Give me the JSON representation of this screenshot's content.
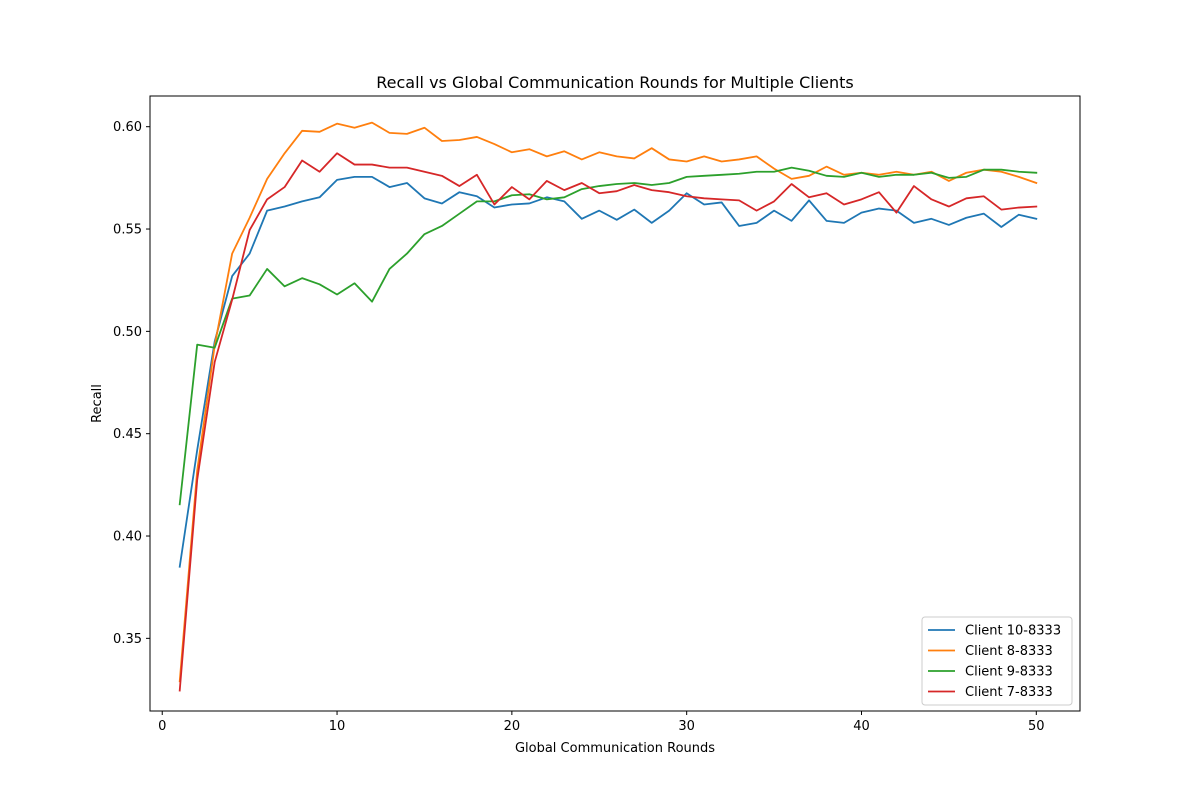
{
  "chart_data": {
    "type": "line",
    "title": "Recall vs Global Communication Rounds for Multiple Clients",
    "xlabel": "Global Communication Rounds",
    "ylabel": "Recall",
    "xlim": [
      -0.7,
      52.5
    ],
    "ylim": [
      0.3145,
      0.615
    ],
    "xticks": [
      0,
      10,
      20,
      30,
      40,
      50
    ],
    "yticks": [
      0.35,
      0.4,
      0.45,
      0.5,
      0.55,
      0.6
    ],
    "xtick_labels": [
      "0",
      "10",
      "20",
      "30",
      "40",
      "50"
    ],
    "ytick_labels": [
      "0.35",
      "0.40",
      "0.45",
      "0.50",
      "0.55",
      "0.60"
    ],
    "grid": false,
    "legend_position": "lower-right",
    "x": [
      1,
      2,
      3,
      4,
      5,
      6,
      7,
      8,
      9,
      10,
      11,
      12,
      13,
      14,
      15,
      16,
      17,
      18,
      19,
      20,
      21,
      22,
      23,
      24,
      25,
      26,
      27,
      28,
      29,
      30,
      31,
      32,
      33,
      34,
      35,
      36,
      37,
      38,
      39,
      40,
      41,
      42,
      43,
      44,
      45,
      46,
      47,
      48,
      49,
      50
    ],
    "series": [
      {
        "name": "Client 10-8333",
        "color": "#1f77b4",
        "values": [
          0.385,
          0.442,
          0.495,
          0.527,
          0.538,
          0.559,
          0.561,
          0.5635,
          0.5655,
          0.574,
          0.5755,
          0.5755,
          0.5705,
          0.5725,
          0.565,
          0.5625,
          0.568,
          0.566,
          0.5605,
          0.562,
          0.5625,
          0.5655,
          0.5635,
          0.555,
          0.559,
          0.5545,
          0.5595,
          0.553,
          0.559,
          0.5675,
          0.562,
          0.563,
          0.5515,
          0.553,
          0.559,
          0.554,
          0.564,
          0.554,
          0.553,
          0.558,
          0.56,
          0.559,
          0.553,
          0.555,
          0.552,
          0.5555,
          0.5575,
          0.551,
          0.557,
          0.555
        ]
      },
      {
        "name": "Client 8-8333",
        "color": "#ff7f0e",
        "values": [
          0.329,
          0.432,
          0.493,
          0.538,
          0.5555,
          0.5745,
          0.587,
          0.598,
          0.5975,
          0.6015,
          0.5995,
          0.602,
          0.597,
          0.5965,
          0.5995,
          0.593,
          0.5935,
          0.595,
          0.5915,
          0.5875,
          0.589,
          0.5855,
          0.588,
          0.584,
          0.5875,
          0.5855,
          0.5845,
          0.5895,
          0.584,
          0.583,
          0.5855,
          0.583,
          0.584,
          0.5855,
          0.5795,
          0.5745,
          0.576,
          0.5805,
          0.5765,
          0.5775,
          0.5765,
          0.578,
          0.5765,
          0.578,
          0.5735,
          0.5775,
          0.579,
          0.578,
          0.5755,
          0.5725
        ]
      },
      {
        "name": "Client 9-8333",
        "color": "#2ca02c",
        "values": [
          0.4155,
          0.4935,
          0.492,
          0.516,
          0.5175,
          0.5305,
          0.522,
          0.526,
          0.523,
          0.518,
          0.5235,
          0.5145,
          0.5305,
          0.538,
          0.5475,
          0.5515,
          0.5575,
          0.5635,
          0.5635,
          0.5665,
          0.567,
          0.5645,
          0.5655,
          0.5695,
          0.571,
          0.572,
          0.5725,
          0.5715,
          0.5725,
          0.5755,
          0.576,
          0.5765,
          0.577,
          0.578,
          0.578,
          0.58,
          0.5785,
          0.576,
          0.5755,
          0.5775,
          0.5755,
          0.5765,
          0.5765,
          0.5775,
          0.575,
          0.5755,
          0.579,
          0.579,
          0.578,
          0.5775
        ]
      },
      {
        "name": "Client 7-8333",
        "color": "#d62728",
        "values": [
          0.3245,
          0.4275,
          0.485,
          0.5155,
          0.5495,
          0.5645,
          0.5705,
          0.5835,
          0.578,
          0.587,
          0.5815,
          0.5815,
          0.58,
          0.58,
          0.578,
          0.576,
          0.571,
          0.5765,
          0.562,
          0.5705,
          0.5645,
          0.5735,
          0.569,
          0.5725,
          0.5675,
          0.5685,
          0.5715,
          0.569,
          0.568,
          0.566,
          0.565,
          0.5645,
          0.564,
          0.559,
          0.5635,
          0.572,
          0.5655,
          0.5675,
          0.562,
          0.5645,
          0.568,
          0.558,
          0.571,
          0.5645,
          0.561,
          0.565,
          0.566,
          0.5595,
          0.5605,
          0.561
        ]
      }
    ]
  }
}
